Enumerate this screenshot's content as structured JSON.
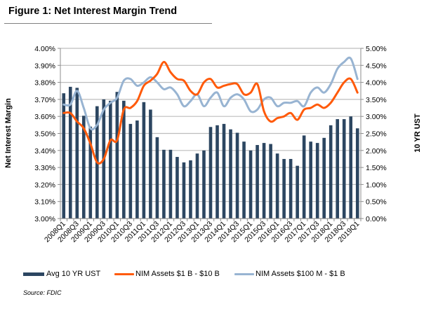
{
  "figure": {
    "title": "Figure 1: Net Interest Margin Trend",
    "source": "Source: FDIC"
  },
  "legend": {
    "items": [
      {
        "label": "Avg 10 YR UST",
        "color": "#2c4661",
        "kind": "bar"
      },
      {
        "label": "NIM Assets $1 B - $10 B",
        "color": "#ff5a0a",
        "kind": "line"
      },
      {
        "label": "NIM Assets $100 M - $1 B",
        "color": "#98b4d2",
        "kind": "line"
      }
    ]
  },
  "chart_data": {
    "type": "bar",
    "title": "Figure 1: Net Interest Margin Trend",
    "xlabel": "",
    "ylabel": "Net Interest Margin",
    "y2label": "10 YR UST",
    "ylim": [
      3.0,
      4.0
    ],
    "y2lim": [
      0.0,
      5.0
    ],
    "grid": true,
    "legend_position": "bottom",
    "yticks": [
      "3.00%",
      "3.10%",
      "3.20%",
      "3.30%",
      "3.40%",
      "3.50%",
      "3.60%",
      "3.70%",
      "3.80%",
      "3.90%",
      "4.00%"
    ],
    "y2ticks": [
      "0.00%",
      "0.50%",
      "1.00%",
      "1.50%",
      "2.00%",
      "2.50%",
      "3.00%",
      "3.50%",
      "4.00%",
      "4.50%",
      "5.00%"
    ],
    "categories": [
      "2008Q1",
      "2008Q2",
      "2008Q3",
      "2008Q4",
      "2009Q1",
      "2009Q2",
      "2009Q3",
      "2009Q4",
      "2010Q1",
      "2010Q2",
      "2010Q3",
      "2010Q4",
      "2011Q1",
      "2011Q2",
      "2011Q3",
      "2011Q4",
      "2012Q1",
      "2012Q2",
      "2012Q3",
      "2012Q4",
      "2013Q1",
      "2013Q2",
      "2013Q3",
      "2013Q4",
      "2014Q1",
      "2014Q2",
      "2014Q3",
      "2014Q4",
      "2015Q1",
      "2015Q2",
      "2015Q3",
      "2015Q4",
      "2016Q1",
      "2016Q2",
      "2016Q3",
      "2016Q4",
      "2017Q1",
      "2017Q2",
      "2017Q3",
      "2017Q4",
      "2018Q1",
      "2018Q2",
      "2018Q3",
      "2018Q4",
      "2019Q1"
    ],
    "xtick_labels": [
      "2008Q1",
      "2008Q3",
      "2009Q1",
      "2009Q3",
      "2010Q1",
      "2010Q3",
      "2011Q1",
      "2011Q3",
      "2012Q1",
      "2012Q3",
      "2013Q1",
      "2013Q3",
      "2014Q1",
      "2014Q3",
      "2015Q1",
      "2015Q3",
      "2016Q1",
      "2016Q3",
      "2017Q1",
      "2017Q3",
      "2018Q1",
      "2018Q3",
      "2019Q1"
    ],
    "series": [
      {
        "name": "Avg 10 YR UST",
        "type": "bar",
        "axis": "right",
        "color": "#2c4661",
        "values": [
          3.68,
          3.87,
          3.84,
          3.02,
          2.7,
          3.3,
          3.5,
          3.46,
          3.72,
          3.46,
          2.78,
          2.88,
          3.42,
          3.2,
          2.39,
          2.02,
          2.02,
          1.81,
          1.65,
          1.71,
          1.91,
          2.0,
          2.69,
          2.74,
          2.78,
          2.62,
          2.52,
          2.26,
          2.0,
          2.16,
          2.22,
          2.19,
          1.91,
          1.75,
          1.75,
          1.55,
          2.44,
          2.26,
          2.22,
          2.37,
          2.74,
          2.92,
          2.92,
          3.0,
          2.65
        ]
      },
      {
        "name": "NIM Assets $1 B - $10 B",
        "type": "line",
        "axis": "left",
        "color": "#ff5a0a",
        "values": [
          3.62,
          3.62,
          3.57,
          3.53,
          3.44,
          3.33,
          3.35,
          3.46,
          3.46,
          3.64,
          3.65,
          3.69,
          3.78,
          3.81,
          3.85,
          3.92,
          3.86,
          3.82,
          3.81,
          3.75,
          3.73,
          3.8,
          3.82,
          3.77,
          3.78,
          3.79,
          3.79,
          3.73,
          3.74,
          3.79,
          3.63,
          3.57,
          3.59,
          3.6,
          3.62,
          3.58,
          3.64,
          3.65,
          3.67,
          3.65,
          3.68,
          3.74,
          3.8,
          3.82,
          3.74
        ]
      },
      {
        "name": "NIM Assets $100 M - $1 B",
        "type": "line",
        "axis": "left",
        "color": "#98b4d2",
        "values": [
          3.67,
          3.67,
          3.75,
          3.65,
          3.53,
          3.55,
          3.64,
          3.68,
          3.71,
          3.81,
          3.82,
          3.78,
          3.8,
          3.83,
          3.8,
          3.76,
          3.77,
          3.73,
          3.66,
          3.69,
          3.73,
          3.66,
          3.71,
          3.74,
          3.66,
          3.71,
          3.73,
          3.7,
          3.63,
          3.64,
          3.7,
          3.71,
          3.66,
          3.68,
          3.68,
          3.69,
          3.66,
          3.74,
          3.77,
          3.74,
          3.79,
          3.88,
          3.92,
          3.94,
          3.82
        ]
      }
    ]
  }
}
